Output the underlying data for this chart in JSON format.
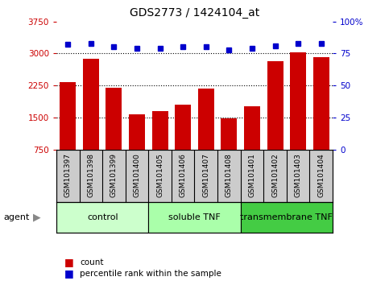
{
  "title": "GDS2773 / 1424104_at",
  "samples": [
    "GSM101397",
    "GSM101398",
    "GSM101399",
    "GSM101400",
    "GSM101405",
    "GSM101406",
    "GSM101407",
    "GSM101408",
    "GSM101401",
    "GSM101402",
    "GSM101403",
    "GSM101404"
  ],
  "counts": [
    2320,
    2870,
    2190,
    1580,
    1660,
    1810,
    2170,
    1490,
    1760,
    2820,
    3020,
    2920
  ],
  "percentiles_pct": [
    82,
    83,
    80,
    79,
    79,
    80,
    80,
    78,
    79,
    81,
    83,
    83
  ],
  "ylim_left": [
    750,
    3750
  ],
  "ylim_right": [
    0,
    100
  ],
  "yticks_left": [
    750,
    1500,
    2250,
    3000,
    3750
  ],
  "yticks_right": [
    0,
    25,
    50,
    75,
    100
  ],
  "ytick_labels_right": [
    "0",
    "25",
    "50",
    "75",
    "100%"
  ],
  "bar_color": "#cc0000",
  "dot_color": "#0000cc",
  "groups": [
    {
      "label": "control",
      "start": 0,
      "end": 4,
      "color": "#ccffcc"
    },
    {
      "label": "soluble TNF",
      "start": 4,
      "end": 8,
      "color": "#aaffaa"
    },
    {
      "label": "transmembrane TNF",
      "start": 8,
      "end": 12,
      "color": "#44cc44"
    }
  ],
  "agent_label": "agent",
  "legend_count": "count",
  "legend_pct": "percentile rank within the sample",
  "grid_color": "#000000",
  "label_bg_color": "#cccccc",
  "plot_bg_color": "#ffffff"
}
